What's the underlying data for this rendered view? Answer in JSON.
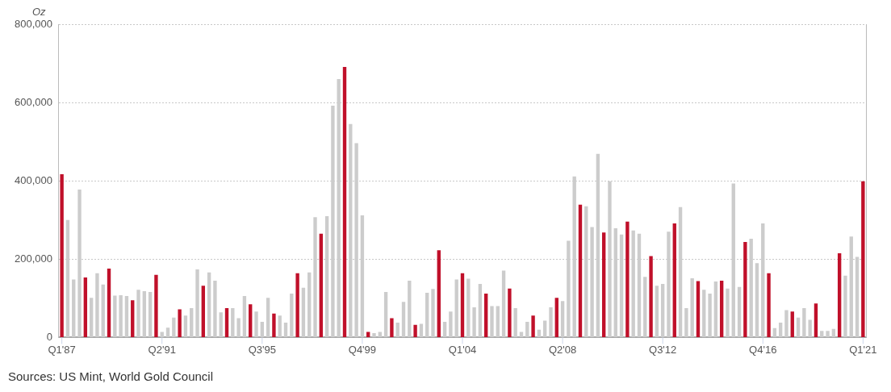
{
  "chart_data": {
    "type": "bar",
    "ylabel": "Oz",
    "annotations": [
      "Sources: US Mint, World Gold Council"
    ],
    "categories": [
      "Q1'87",
      null,
      null,
      null,
      null,
      null,
      null,
      null,
      null,
      null,
      null,
      null,
      null,
      null,
      null,
      null,
      null,
      "Q2'91",
      null,
      null,
      null,
      null,
      null,
      null,
      null,
      null,
      null,
      null,
      null,
      null,
      null,
      null,
      null,
      null,
      "Q3'95",
      null,
      null,
      null,
      null,
      null,
      null,
      null,
      null,
      null,
      null,
      null,
      null,
      null,
      null,
      null,
      null,
      "Q4'99",
      null,
      null,
      null,
      null,
      null,
      null,
      null,
      null,
      null,
      null,
      null,
      null,
      null,
      null,
      null,
      null,
      "Q1'04",
      null,
      null,
      null,
      null,
      null,
      null,
      null,
      null,
      null,
      null,
      null,
      null,
      null,
      null,
      null,
      null,
      "Q2'08",
      null,
      null,
      null,
      null,
      null,
      null,
      null,
      null,
      null,
      null,
      null,
      null,
      null,
      null,
      null,
      null,
      "Q3'12",
      null,
      null,
      null,
      null,
      null,
      null,
      null,
      null,
      null,
      null,
      null,
      null,
      null,
      null,
      null,
      null,
      "Q4'16",
      null,
      null,
      null,
      null,
      null,
      null,
      null,
      null,
      null,
      null,
      null,
      null,
      null,
      null,
      null,
      null,
      "Q1'21"
    ],
    "values": [
      417000,
      300000,
      148000,
      378000,
      153000,
      101000,
      164000,
      135000,
      176000,
      107000,
      108000,
      106000,
      95000,
      122000,
      118000,
      116000,
      160000,
      14000,
      25000,
      51000,
      72000,
      56000,
      75000,
      174000,
      132000,
      166000,
      145000,
      64000,
      75000,
      75000,
      49000,
      106000,
      85000,
      66000,
      40000,
      101000,
      61000,
      56000,
      38000,
      112000,
      164000,
      127000,
      166000,
      307000,
      265000,
      310000,
      592000,
      660000,
      691000,
      545000,
      496000,
      312000,
      14000,
      11000,
      14000,
      116000,
      49000,
      38000,
      91000,
      145000,
      32000,
      35000,
      114000,
      124000,
      223000,
      40000,
      66000,
      148000,
      164000,
      150000,
      77000,
      137000,
      112000,
      80000,
      80000,
      171000,
      125000,
      75000,
      14000,
      40000,
      56000,
      20000,
      43000,
      77000,
      101000,
      93000,
      247000,
      411000,
      339000,
      335000,
      282000,
      469000,
      268000,
      399000,
      279000,
      263000,
      296000,
      273000,
      265000,
      155000,
      208000,
      132000,
      137000,
      270000,
      291000,
      333000,
      75000,
      151000,
      144000,
      122000,
      112000,
      143000,
      145000,
      125000,
      393000,
      129000,
      244000,
      252000,
      190000,
      291000,
      164000,
      24000,
      38000,
      70000,
      66000,
      51000,
      75000,
      45000,
      87000,
      17000,
      17000,
      22000,
      215000,
      158000,
      258000,
      206000,
      399000
    ],
    "colors": [
      "#c0102a",
      "#cccccc",
      "#cccccc",
      "#cccccc",
      "#c0102a",
      "#cccccc",
      "#cccccc",
      "#cccccc",
      "#c0102a",
      "#cccccc",
      "#cccccc",
      "#cccccc",
      "#c0102a",
      "#cccccc",
      "#cccccc",
      "#cccccc",
      "#c0102a",
      "#cccccc",
      "#cccccc",
      "#cccccc",
      "#c0102a",
      "#cccccc",
      "#cccccc",
      "#cccccc",
      "#c0102a",
      "#cccccc",
      "#cccccc",
      "#cccccc",
      "#c0102a",
      "#cccccc",
      "#cccccc",
      "#cccccc",
      "#c0102a",
      "#cccccc",
      "#cccccc",
      "#cccccc",
      "#c0102a",
      "#cccccc",
      "#cccccc",
      "#cccccc",
      "#c0102a",
      "#cccccc",
      "#cccccc",
      "#cccccc",
      "#c0102a",
      "#cccccc",
      "#cccccc",
      "#cccccc",
      "#c0102a",
      "#cccccc",
      "#cccccc",
      "#cccccc",
      "#c0102a",
      "#cccccc",
      "#cccccc",
      "#cccccc",
      "#c0102a",
      "#cccccc",
      "#cccccc",
      "#cccccc",
      "#c0102a",
      "#cccccc",
      "#cccccc",
      "#cccccc",
      "#c0102a",
      "#cccccc",
      "#cccccc",
      "#cccccc",
      "#c0102a",
      "#cccccc",
      "#cccccc",
      "#cccccc",
      "#c0102a",
      "#cccccc",
      "#cccccc",
      "#cccccc",
      "#c0102a",
      "#cccccc",
      "#cccccc",
      "#cccccc",
      "#c0102a",
      "#cccccc",
      "#cccccc",
      "#cccccc",
      "#c0102a",
      "#cccccc",
      "#cccccc",
      "#cccccc",
      "#c0102a",
      "#cccccc",
      "#cccccc",
      "#cccccc",
      "#c0102a",
      "#cccccc",
      "#cccccc",
      "#cccccc",
      "#c0102a",
      "#cccccc",
      "#cccccc",
      "#cccccc",
      "#c0102a",
      "#cccccc",
      "#cccccc",
      "#cccccc",
      "#c0102a",
      "#cccccc",
      "#cccccc",
      "#cccccc",
      "#c0102a",
      "#cccccc",
      "#cccccc",
      "#cccccc",
      "#c0102a",
      "#cccccc",
      "#cccccc",
      "#cccccc",
      "#c0102a",
      "#cccccc",
      "#cccccc",
      "#cccccc",
      "#c0102a",
      "#cccccc",
      "#cccccc",
      "#cccccc",
      "#c0102a",
      "#cccccc",
      "#cccccc",
      "#cccccc",
      "#c0102a",
      "#cccccc",
      "#cccccc",
      "#cccccc",
      "#c0102a",
      "#cccccc",
      "#cccccc",
      "#cccccc",
      "#c0102a"
    ],
    "ylim": [
      0,
      800000
    ],
    "yticks": [
      0,
      {
        "value": 200000,
        "label": "200,000"
      },
      {
        "value": 400000,
        "label": "400,000"
      },
      {
        "value": 600000,
        "label": "600,000"
      },
      {
        "value": 800000,
        "label": "800,000"
      }
    ],
    "grid": "y",
    "legend": false
  }
}
